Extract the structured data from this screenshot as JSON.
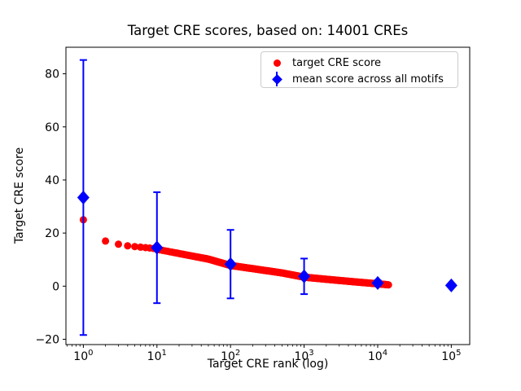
{
  "title": "Target CRE scores, based on: 14001 CREs",
  "colors": {
    "target_series": "#ff0000",
    "mean_series": "#0000ff",
    "axes": "#000000",
    "legend_border": "#cccccc",
    "background": "#ffffff"
  },
  "chart_data": {
    "type": "scatter",
    "title": "Target CRE scores, based on: 14001 CREs",
    "xlabel": "Target CRE rank (log)",
    "ylabel": "Target CRE score",
    "x_scale": "log",
    "grid": false,
    "xlim": [
      0.58,
      178000
    ],
    "ylim": [
      -22,
      90
    ],
    "x_major_ticks": [
      1,
      10,
      100,
      1000,
      10000,
      100000
    ],
    "x_tick_exponents": [
      0,
      1,
      2,
      3,
      4,
      5
    ],
    "y_ticks": [
      -20,
      0,
      20,
      40,
      60,
      80
    ],
    "legend": {
      "position": "upper right",
      "entries": [
        {
          "label": "target CRE score",
          "marker": "circle",
          "color": "#ff0000"
        },
        {
          "label": "mean score across all motifs",
          "marker": "diamond-errorbar",
          "color": "#0000ff"
        }
      ]
    },
    "series": [
      {
        "name": "target CRE score",
        "type": "scatter",
        "marker": "circle",
        "color": "#ff0000",
        "n_points": 14001,
        "anchors": {
          "ranks": [
            1,
            2,
            3,
            4,
            5,
            6,
            7,
            8,
            9,
            10,
            20,
            50,
            100,
            200,
            500,
            1000,
            2000,
            5000,
            10000,
            14001
          ],
          "scores": [
            25.0,
            17.0,
            15.8,
            15.2,
            14.9,
            14.7,
            14.5,
            14.35,
            14.2,
            13.9,
            12.3,
            10.2,
            7.8,
            6.6,
            5.0,
            3.4,
            2.6,
            1.6,
            0.9,
            0.5
          ]
        }
      },
      {
        "name": "mean score across all motifs",
        "type": "errorbar",
        "marker": "diamond",
        "color": "#0000ff",
        "x": [
          1,
          10,
          100,
          1000,
          10000,
          100000
        ],
        "y": [
          33.4,
          14.5,
          8.3,
          3.7,
          1.2,
          0.3
        ],
        "yerr": [
          51.8,
          20.9,
          12.9,
          6.7,
          1.0,
          0.2
        ]
      }
    ]
  }
}
